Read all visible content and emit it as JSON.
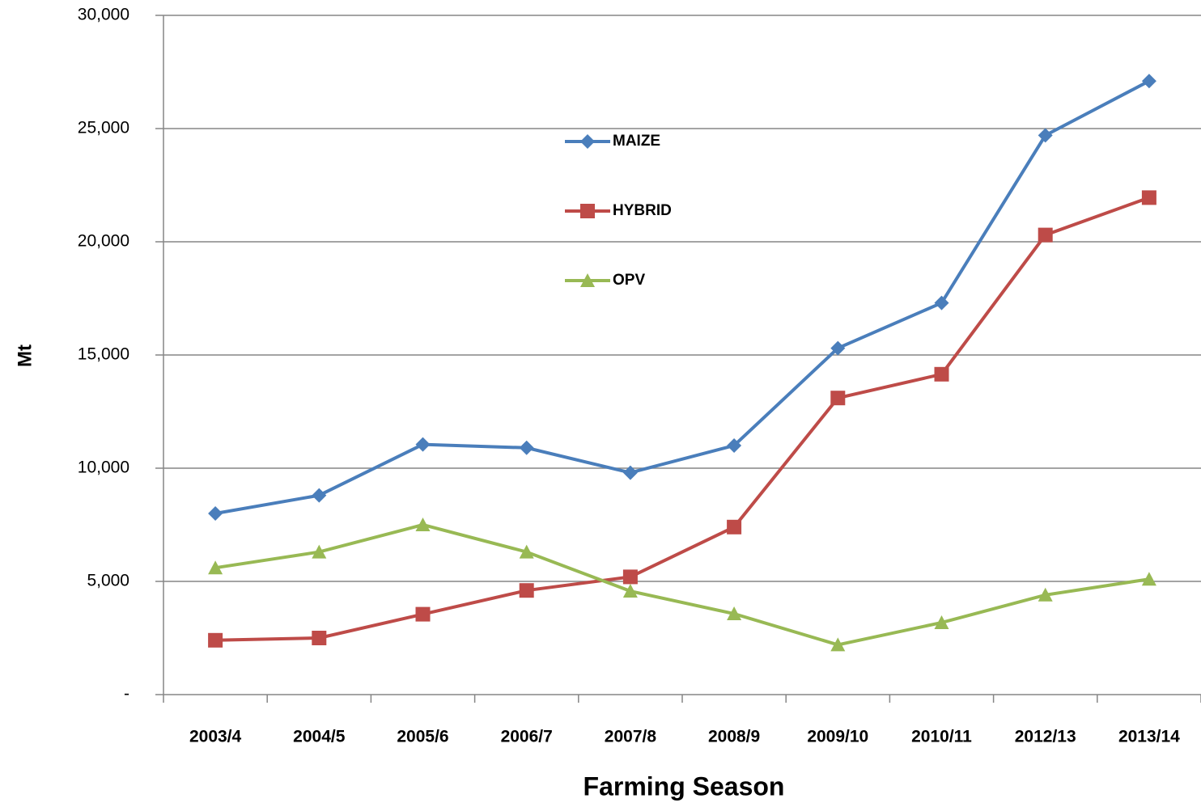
{
  "chart_data": {
    "type": "line",
    "x_label": "Farming Season",
    "y_label": "Mt",
    "categories": [
      "2003/4",
      "2004/5",
      "2005/6",
      "2006/7",
      "2007/8",
      "2008/9",
      "2009/10",
      "2010/11",
      "2012/13",
      "2013/14"
    ],
    "series": [
      {
        "name": "MAIZE",
        "color": "#4a7ebb",
        "marker": "diamond",
        "values": [
          8000,
          8800,
          11050,
          10900,
          9800,
          11000,
          15300,
          17300,
          24700,
          27100
        ]
      },
      {
        "name": "HYBRID",
        "color": "#be4b48",
        "marker": "square",
        "values": [
          2400,
          2500,
          3550,
          4600,
          5200,
          7400,
          13100,
          14150,
          20300,
          21950
        ]
      },
      {
        "name": "OPV",
        "color": "#98b954",
        "marker": "triangle",
        "values": [
          5600,
          6300,
          7500,
          6300,
          4570,
          3570,
          2200,
          3180,
          4400,
          5100
        ]
      }
    ],
    "ylim": [
      0,
      30000
    ],
    "yticks": [
      {
        "value": 0,
        "label": "-"
      },
      {
        "value": 5000,
        "label": "5,000"
      },
      {
        "value": 10000,
        "label": "10,000"
      },
      {
        "value": 15000,
        "label": "15,000"
      },
      {
        "value": 20000,
        "label": "20,000"
      },
      {
        "value": 25000,
        "label": "25,000"
      },
      {
        "value": 30000,
        "label": "30,000"
      }
    ],
    "grid": true,
    "legend": "top"
  }
}
